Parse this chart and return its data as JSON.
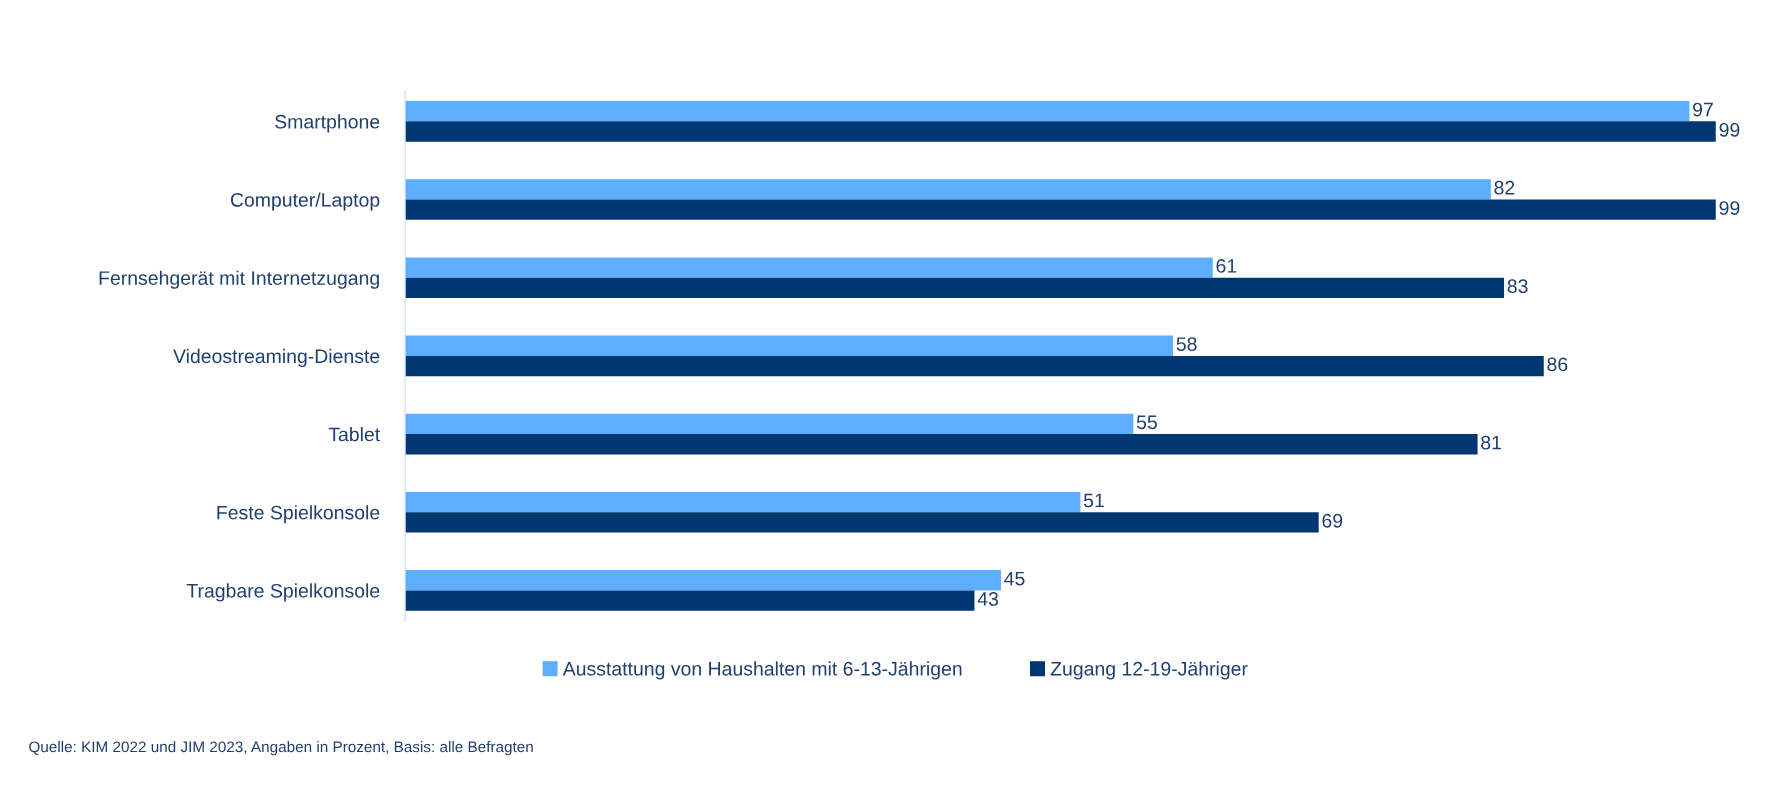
{
  "chart_data": {
    "type": "bar",
    "orientation": "horizontal",
    "categories": [
      "Smartphone",
      "Computer/Laptop",
      "Fernsehgerät mit Internetzugang",
      "Videostreaming-Dienste",
      "Tablet",
      "Feste Spielkonsole",
      "Tragbare Spielkonsole"
    ],
    "series": [
      {
        "name": "Ausstattung von Haushalten mit 6-13-Jährigen",
        "color": "#5eaeff",
        "values": [
          97,
          82,
          61,
          58,
          55,
          51,
          45
        ]
      },
      {
        "name": "Zugang 12-19-Jähriger",
        "color": "#003671",
        "values": [
          99,
          99,
          83,
          86,
          81,
          69,
          43
        ]
      }
    ],
    "data_labels": true,
    "legend": "bottom",
    "grid": false,
    "tick_labels": "y",
    "annotations": [
      "Quelle: KIM 2022 und JIM 2023, Angaben in Prozent, Basis: alle Befragten"
    ]
  }
}
